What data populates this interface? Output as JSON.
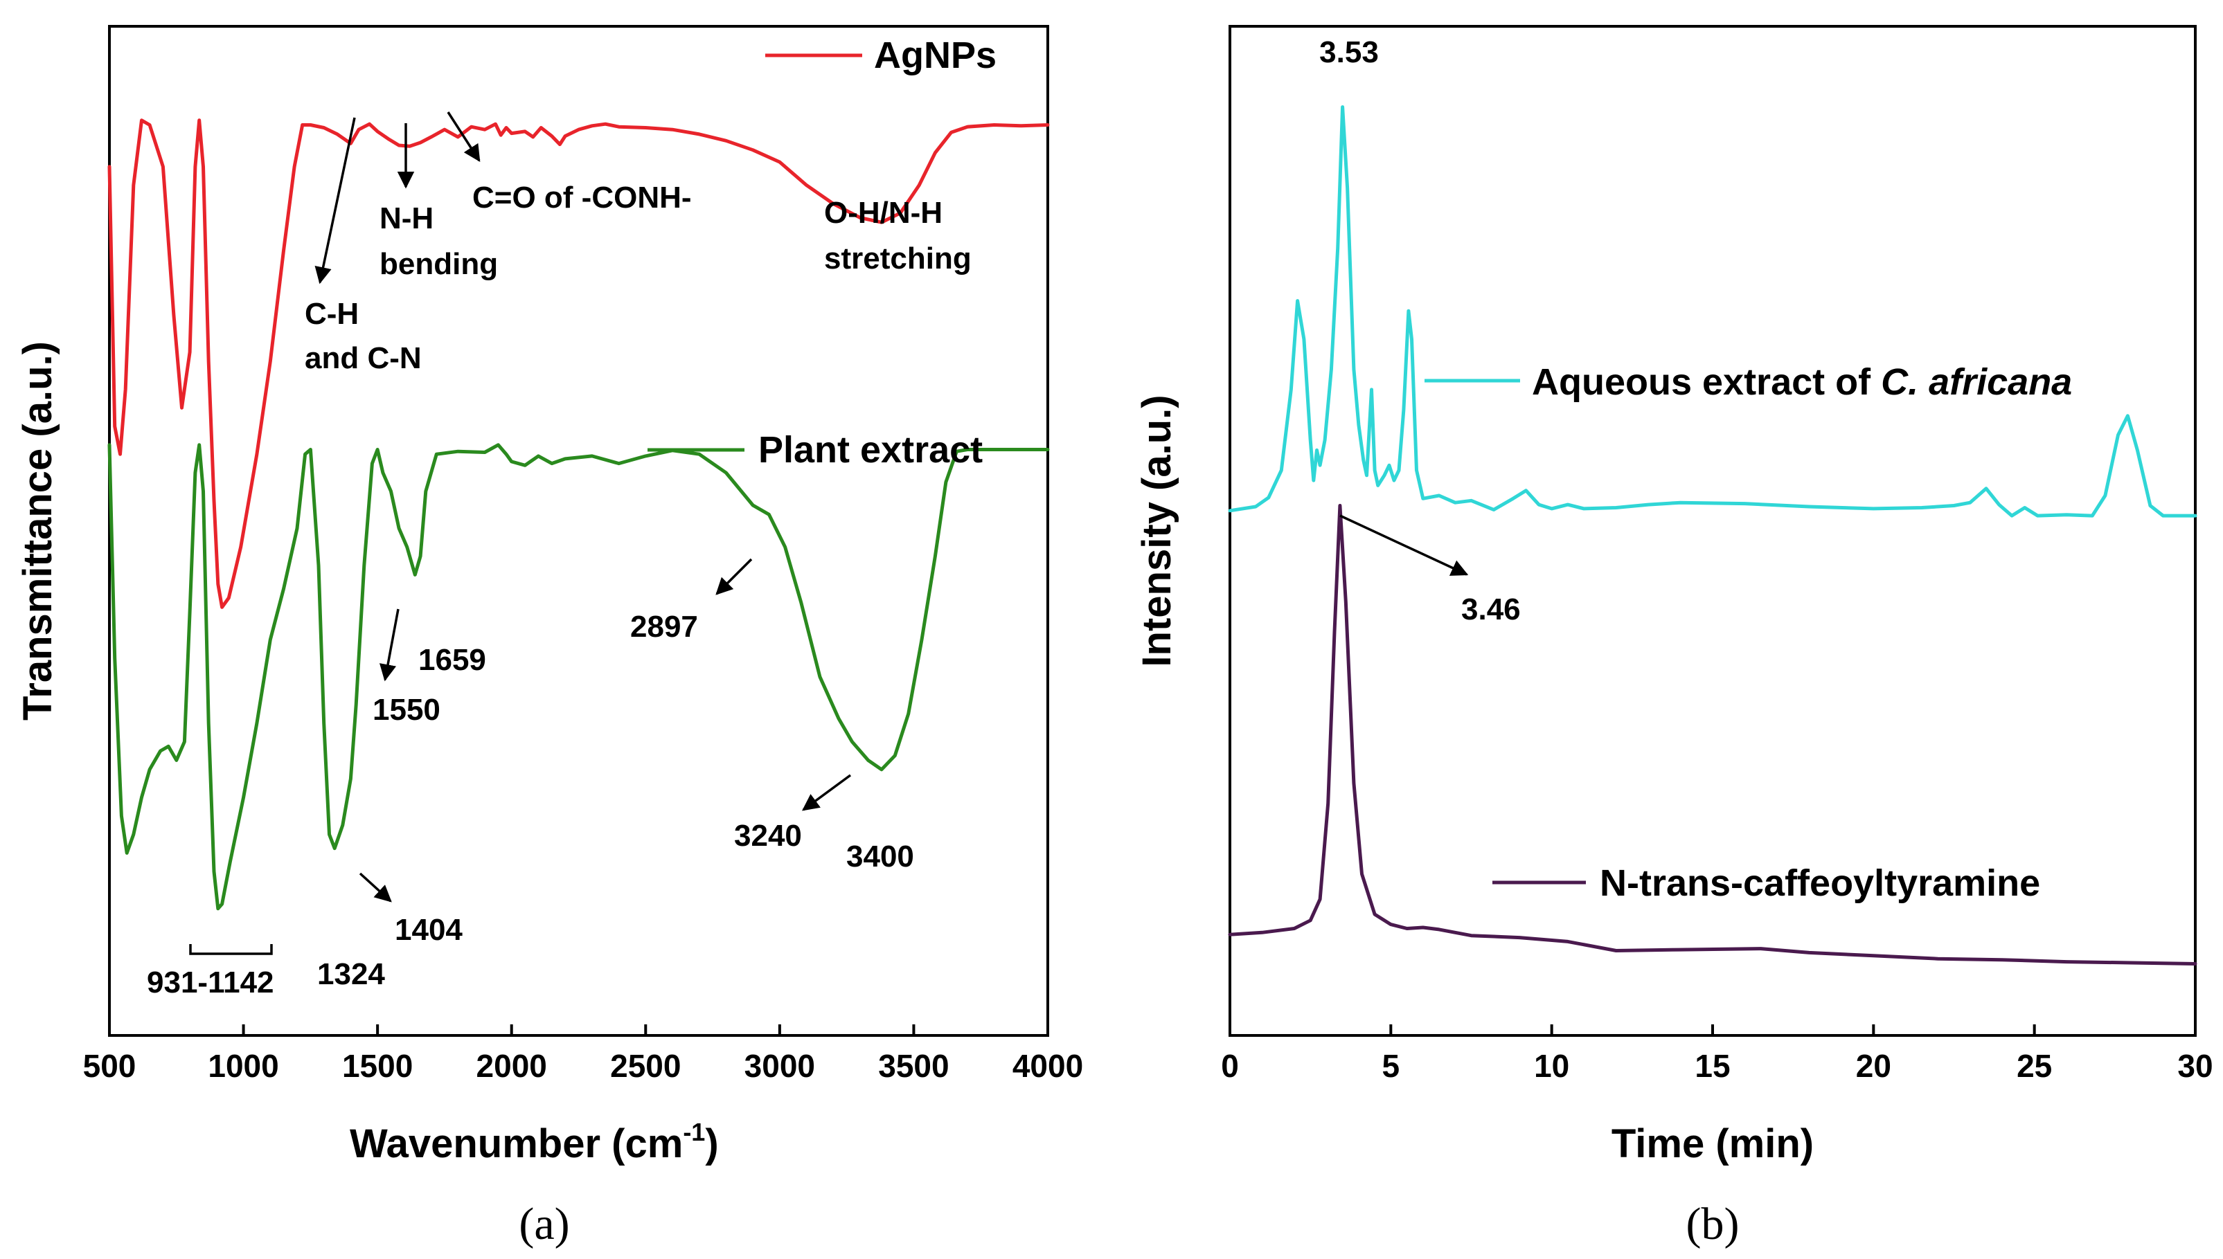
{
  "chart_data": [
    {
      "type": "line",
      "panel_label": "(a)",
      "xlabel": "Wavenumber (cm",
      "xlabel_sup": "-1",
      "xlabel_close": ")",
      "ylabel": "Transmittance (a.u.)",
      "xlim": [
        500,
        4000
      ],
      "ylim": [
        0,
        100
      ],
      "xticks": [
        500,
        1000,
        1500,
        2000,
        2500,
        3000,
        3500,
        4000
      ],
      "legend_position": "top-right",
      "series": [
        {
          "name": "AgNPs",
          "color": "#e8242b",
          "points": [
            [
              500,
              88
            ],
            [
              520,
              60
            ],
            [
              540,
              57
            ],
            [
              560,
              64
            ],
            [
              590,
              86
            ],
            [
              620,
              93
            ],
            [
              650,
              92.5
            ],
            [
              700,
              88
            ],
            [
              740,
              72
            ],
            [
              770,
              62
            ],
            [
              800,
              68
            ],
            [
              820,
              88
            ],
            [
              835,
              93
            ],
            [
              850,
              88
            ],
            [
              870,
              67
            ],
            [
              890,
              52
            ],
            [
              905,
              43
            ],
            [
              920,
              40.5
            ],
            [
              945,
              41.5
            ],
            [
              990,
              47
            ],
            [
              1050,
              57
            ],
            [
              1100,
              67
            ],
            [
              1150,
              79
            ],
            [
              1190,
              88
            ],
            [
              1220,
              92.5
            ],
            [
              1250,
              92.5
            ],
            [
              1300,
              92.2
            ],
            [
              1350,
              91.5
            ],
            [
              1400,
              90.5
            ],
            [
              1430,
              92
            ],
            [
              1470,
              92.6
            ],
            [
              1500,
              91.8
            ],
            [
              1540,
              91
            ],
            [
              1580,
              90.3
            ],
            [
              1620,
              90.2
            ],
            [
              1660,
              90.6
            ],
            [
              1700,
              91.2
            ],
            [
              1750,
              92
            ],
            [
              1800,
              91.2
            ],
            [
              1850,
              92.3
            ],
            [
              1900,
              92
            ],
            [
              1940,
              92.6
            ],
            [
              1960,
              91.4
            ],
            [
              1980,
              92.2
            ],
            [
              2000,
              91.6
            ],
            [
              2050,
              91.8
            ],
            [
              2080,
              91.2
            ],
            [
              2110,
              92.2
            ],
            [
              2150,
              91.3
            ],
            [
              2180,
              90.4
            ],
            [
              2200,
              91.3
            ],
            [
              2250,
              92
            ],
            [
              2300,
              92.4
            ],
            [
              2350,
              92.6
            ],
            [
              2400,
              92.3
            ],
            [
              2500,
              92.2
            ],
            [
              2600,
              92
            ],
            [
              2700,
              91.5
            ],
            [
              2800,
              90.8
            ],
            [
              2900,
              89.8
            ],
            [
              3000,
              88.5
            ],
            [
              3100,
              86
            ],
            [
              3200,
              84
            ],
            [
              3300,
              82.5
            ],
            [
              3380,
              82
            ],
            [
              3450,
              83
            ],
            [
              3520,
              86
            ],
            [
              3580,
              89.5
            ],
            [
              3640,
              91.7
            ],
            [
              3700,
              92.3
            ],
            [
              3800,
              92.5
            ],
            [
              3900,
              92.4
            ],
            [
              4000,
              92.5
            ]
          ]
        },
        {
          "name": "Plant extract",
          "color": "#2a8a1e",
          "points": [
            [
              500,
              58
            ],
            [
              520,
              35
            ],
            [
              545,
              18
            ],
            [
              565,
              14
            ],
            [
              590,
              16
            ],
            [
              620,
              20
            ],
            [
              650,
              23
            ],
            [
              690,
              25
            ],
            [
              720,
              25.5
            ],
            [
              750,
              24
            ],
            [
              780,
              26
            ],
            [
              800,
              40
            ],
            [
              820,
              55
            ],
            [
              835,
              58
            ],
            [
              850,
              53
            ],
            [
              870,
              28
            ],
            [
              890,
              12
            ],
            [
              905,
              8
            ],
            [
              920,
              8.5
            ],
            [
              950,
              13
            ],
            [
              1000,
              20
            ],
            [
              1050,
              28
            ],
            [
              1100,
              37
            ],
            [
              1150,
              42.5
            ],
            [
              1200,
              49
            ],
            [
              1230,
              57
            ],
            [
              1250,
              57.5
            ],
            [
              1280,
              45
            ],
            [
              1300,
              28
            ],
            [
              1320,
              16
            ],
            [
              1340,
              14.5
            ],
            [
              1370,
              17
            ],
            [
              1400,
              22
            ],
            [
              1420,
              30
            ],
            [
              1450,
              45
            ],
            [
              1480,
              56
            ],
            [
              1500,
              57.5
            ],
            [
              1520,
              55
            ],
            [
              1550,
              53
            ],
            [
              1580,
              49
            ],
            [
              1610,
              47
            ],
            [
              1640,
              44
            ],
            [
              1660,
              46
            ],
            [
              1680,
              53
            ],
            [
              1720,
              57
            ],
            [
              1800,
              57.3
            ],
            [
              1900,
              57.2
            ],
            [
              1950,
              58
            ],
            [
              1980,
              57
            ],
            [
              2000,
              56.2
            ],
            [
              2050,
              55.8
            ],
            [
              2100,
              56.8
            ],
            [
              2150,
              56
            ],
            [
              2200,
              56.5
            ],
            [
              2300,
              56.8
            ],
            [
              2400,
              56
            ],
            [
              2500,
              56.8
            ],
            [
              2600,
              57.4
            ],
            [
              2700,
              57
            ],
            [
              2800,
              55
            ],
            [
              2900,
              51.5
            ],
            [
              2960,
              50.5
            ],
            [
              3020,
              47
            ],
            [
              3080,
              41
            ],
            [
              3150,
              33
            ],
            [
              3220,
              28.5
            ],
            [
              3270,
              26
            ],
            [
              3330,
              24
            ],
            [
              3380,
              23
            ],
            [
              3430,
              24.5
            ],
            [
              3480,
              29
            ],
            [
              3530,
              37
            ],
            [
              3580,
              46
            ],
            [
              3620,
              54
            ],
            [
              3660,
              57.3
            ],
            [
              3700,
              57.5
            ],
            [
              3800,
              57.5
            ],
            [
              3900,
              57.5
            ],
            [
              4000,
              57.5
            ]
          ]
        }
      ],
      "annotations": [
        {
          "lines": [
            "C-H",
            "and C-N"
          ]
        },
        {
          "lines": [
            "N-H",
            "bending"
          ]
        },
        {
          "lines": [
            "C=O of -CONH-"
          ]
        },
        {
          "lines": [
            "O-H/N-H",
            "stretching"
          ]
        },
        {
          "lines": [
            "1659"
          ]
        },
        {
          "lines": [
            "1550"
          ]
        },
        {
          "lines": [
            "2897"
          ]
        },
        {
          "lines": [
            "3240"
          ]
        },
        {
          "lines": [
            "3400"
          ]
        },
        {
          "lines": [
            "1404"
          ]
        },
        {
          "lines": [
            "1324"
          ]
        },
        {
          "lines": [
            "931-1142"
          ]
        }
      ]
    },
    {
      "type": "line",
      "panel_label": "(b)",
      "xlabel": "Time (min)",
      "ylabel": "Intensity (a.u.)",
      "xlim": [
        0,
        30
      ],
      "ylim": [
        0,
        100
      ],
      "xticks": [
        0,
        5,
        10,
        15,
        20,
        25,
        30
      ],
      "legend_position": "inline",
      "series": [
        {
          "name_prefix": "Aqueous extract of ",
          "name_italic": "C. africana",
          "color": "#30d6d6",
          "points": [
            [
              0,
              52
            ],
            [
              0.8,
              52.4
            ],
            [
              1.2,
              53.3
            ],
            [
              1.6,
              56
            ],
            [
              1.9,
              64
            ],
            [
              2.1,
              72.8
            ],
            [
              2.3,
              69
            ],
            [
              2.5,
              59
            ],
            [
              2.6,
              55
            ],
            [
              2.7,
              58
            ],
            [
              2.8,
              56.5
            ],
            [
              2.95,
              59
            ],
            [
              3.15,
              66
            ],
            [
              3.35,
              78
            ],
            [
              3.5,
              92
            ],
            [
              3.65,
              84
            ],
            [
              3.85,
              66
            ],
            [
              4,
              60.5
            ],
            [
              4.15,
              57
            ],
            [
              4.25,
              55.5
            ],
            [
              4.4,
              64
            ],
            [
              4.5,
              56
            ],
            [
              4.6,
              54.5
            ],
            [
              4.8,
              55.5
            ],
            [
              4.95,
              56.5
            ],
            [
              5.1,
              55
            ],
            [
              5.25,
              56
            ],
            [
              5.4,
              62
            ],
            [
              5.55,
              71.8
            ],
            [
              5.65,
              69
            ],
            [
              5.8,
              56
            ],
            [
              6,
              53.2
            ],
            [
              6.5,
              53.5
            ],
            [
              7,
              52.8
            ],
            [
              7.5,
              53
            ],
            [
              8.2,
              52.1
            ],
            [
              8.8,
              53.2
            ],
            [
              9.2,
              54
            ],
            [
              9.6,
              52.6
            ],
            [
              10,
              52.2
            ],
            [
              10.5,
              52.6
            ],
            [
              11,
              52.2
            ],
            [
              12,
              52.3
            ],
            [
              13,
              52.6
            ],
            [
              14,
              52.8
            ],
            [
              16,
              52.7
            ],
            [
              18,
              52.4
            ],
            [
              20,
              52.2
            ],
            [
              21.5,
              52.3
            ],
            [
              22.5,
              52.5
            ],
            [
              23,
              52.8
            ],
            [
              23.5,
              54.2
            ],
            [
              23.9,
              52.6
            ],
            [
              24.3,
              51.5
            ],
            [
              24.7,
              52.3
            ],
            [
              25.1,
              51.5
            ],
            [
              26,
              51.6
            ],
            [
              26.8,
              51.5
            ],
            [
              27.2,
              53.5
            ],
            [
              27.6,
              59.5
            ],
            [
              27.9,
              61.4
            ],
            [
              28.2,
              58
            ],
            [
              28.6,
              52.5
            ],
            [
              29,
              51.5
            ],
            [
              30,
              51.5
            ]
          ]
        },
        {
          "name": "N-trans-caffeoyltyramine",
          "color": "#4a1a4e",
          "points": [
            [
              0,
              10
            ],
            [
              1,
              10.2
            ],
            [
              2,
              10.6
            ],
            [
              2.5,
              11.4
            ],
            [
              2.8,
              13.5
            ],
            [
              3.05,
              23
            ],
            [
              3.25,
              40
            ],
            [
              3.42,
              52.5
            ],
            [
              3.6,
              43
            ],
            [
              3.85,
              25
            ],
            [
              4.1,
              16
            ],
            [
              4.5,
              12
            ],
            [
              5,
              11
            ],
            [
              5.5,
              10.6
            ],
            [
              6,
              10.7
            ],
            [
              6.5,
              10.5
            ],
            [
              7.5,
              9.9
            ],
            [
              9,
              9.7
            ],
            [
              10.5,
              9.3
            ],
            [
              12,
              8.4
            ],
            [
              14,
              8.5
            ],
            [
              16.5,
              8.6
            ],
            [
              18,
              8.2
            ],
            [
              20,
              7.9
            ],
            [
              22,
              7.6
            ],
            [
              24,
              7.5
            ],
            [
              26,
              7.3
            ],
            [
              28,
              7.2
            ],
            [
              30,
              7.1
            ]
          ]
        }
      ],
      "annotations": [
        {
          "lines": [
            "3.53"
          ]
        },
        {
          "lines": [
            "3.46"
          ]
        }
      ]
    }
  ]
}
